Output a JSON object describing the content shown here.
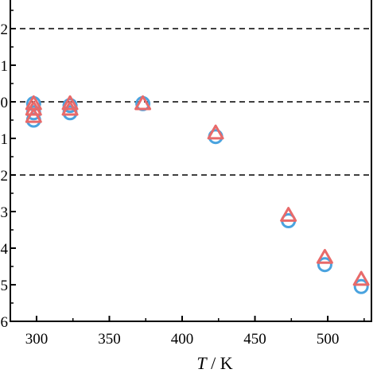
{
  "chart_data": {
    "type": "scatter",
    "xlabel_var": "T",
    "xlabel_unit": "/ K",
    "ylabel": "",
    "xlim": [
      282,
      530
    ],
    "ylim": [
      -6,
      3
    ],
    "x_ticks": [
      300,
      350,
      400,
      450,
      500
    ],
    "y_ticks": [
      3,
      2,
      1,
      0,
      -1,
      -2,
      -3,
      -4,
      -5,
      -6
    ],
    "y_tick_labels": [
      "3",
      "2",
      "1",
      "0",
      "1",
      "2",
      "3",
      "4",
      "5",
      "6"
    ],
    "reference_lines_y": [
      2,
      0,
      -2
    ],
    "grid": false,
    "legend": "none",
    "series": [
      {
        "marker": "circle",
        "color": "#4aa3df",
        "points": [
          [
            298,
            -0.05
          ],
          [
            298,
            -0.3
          ],
          [
            298,
            -0.5
          ],
          [
            323,
            -0.1
          ],
          [
            323,
            -0.3
          ],
          [
            373,
            -0.05
          ],
          [
            423,
            -0.95
          ],
          [
            473,
            -3.25
          ],
          [
            498,
            -4.45
          ],
          [
            523,
            -5.05
          ]
        ]
      },
      {
        "marker": "triangle",
        "color": "#e86a6a",
        "points": [
          [
            298,
            -0.05
          ],
          [
            298,
            -0.2
          ],
          [
            298,
            -0.4
          ],
          [
            323,
            -0.05
          ],
          [
            323,
            -0.2
          ],
          [
            373,
            -0.05
          ],
          [
            423,
            -0.85
          ],
          [
            473,
            -3.1
          ],
          [
            498,
            -4.25
          ],
          [
            523,
            -4.85
          ]
        ]
      }
    ]
  }
}
